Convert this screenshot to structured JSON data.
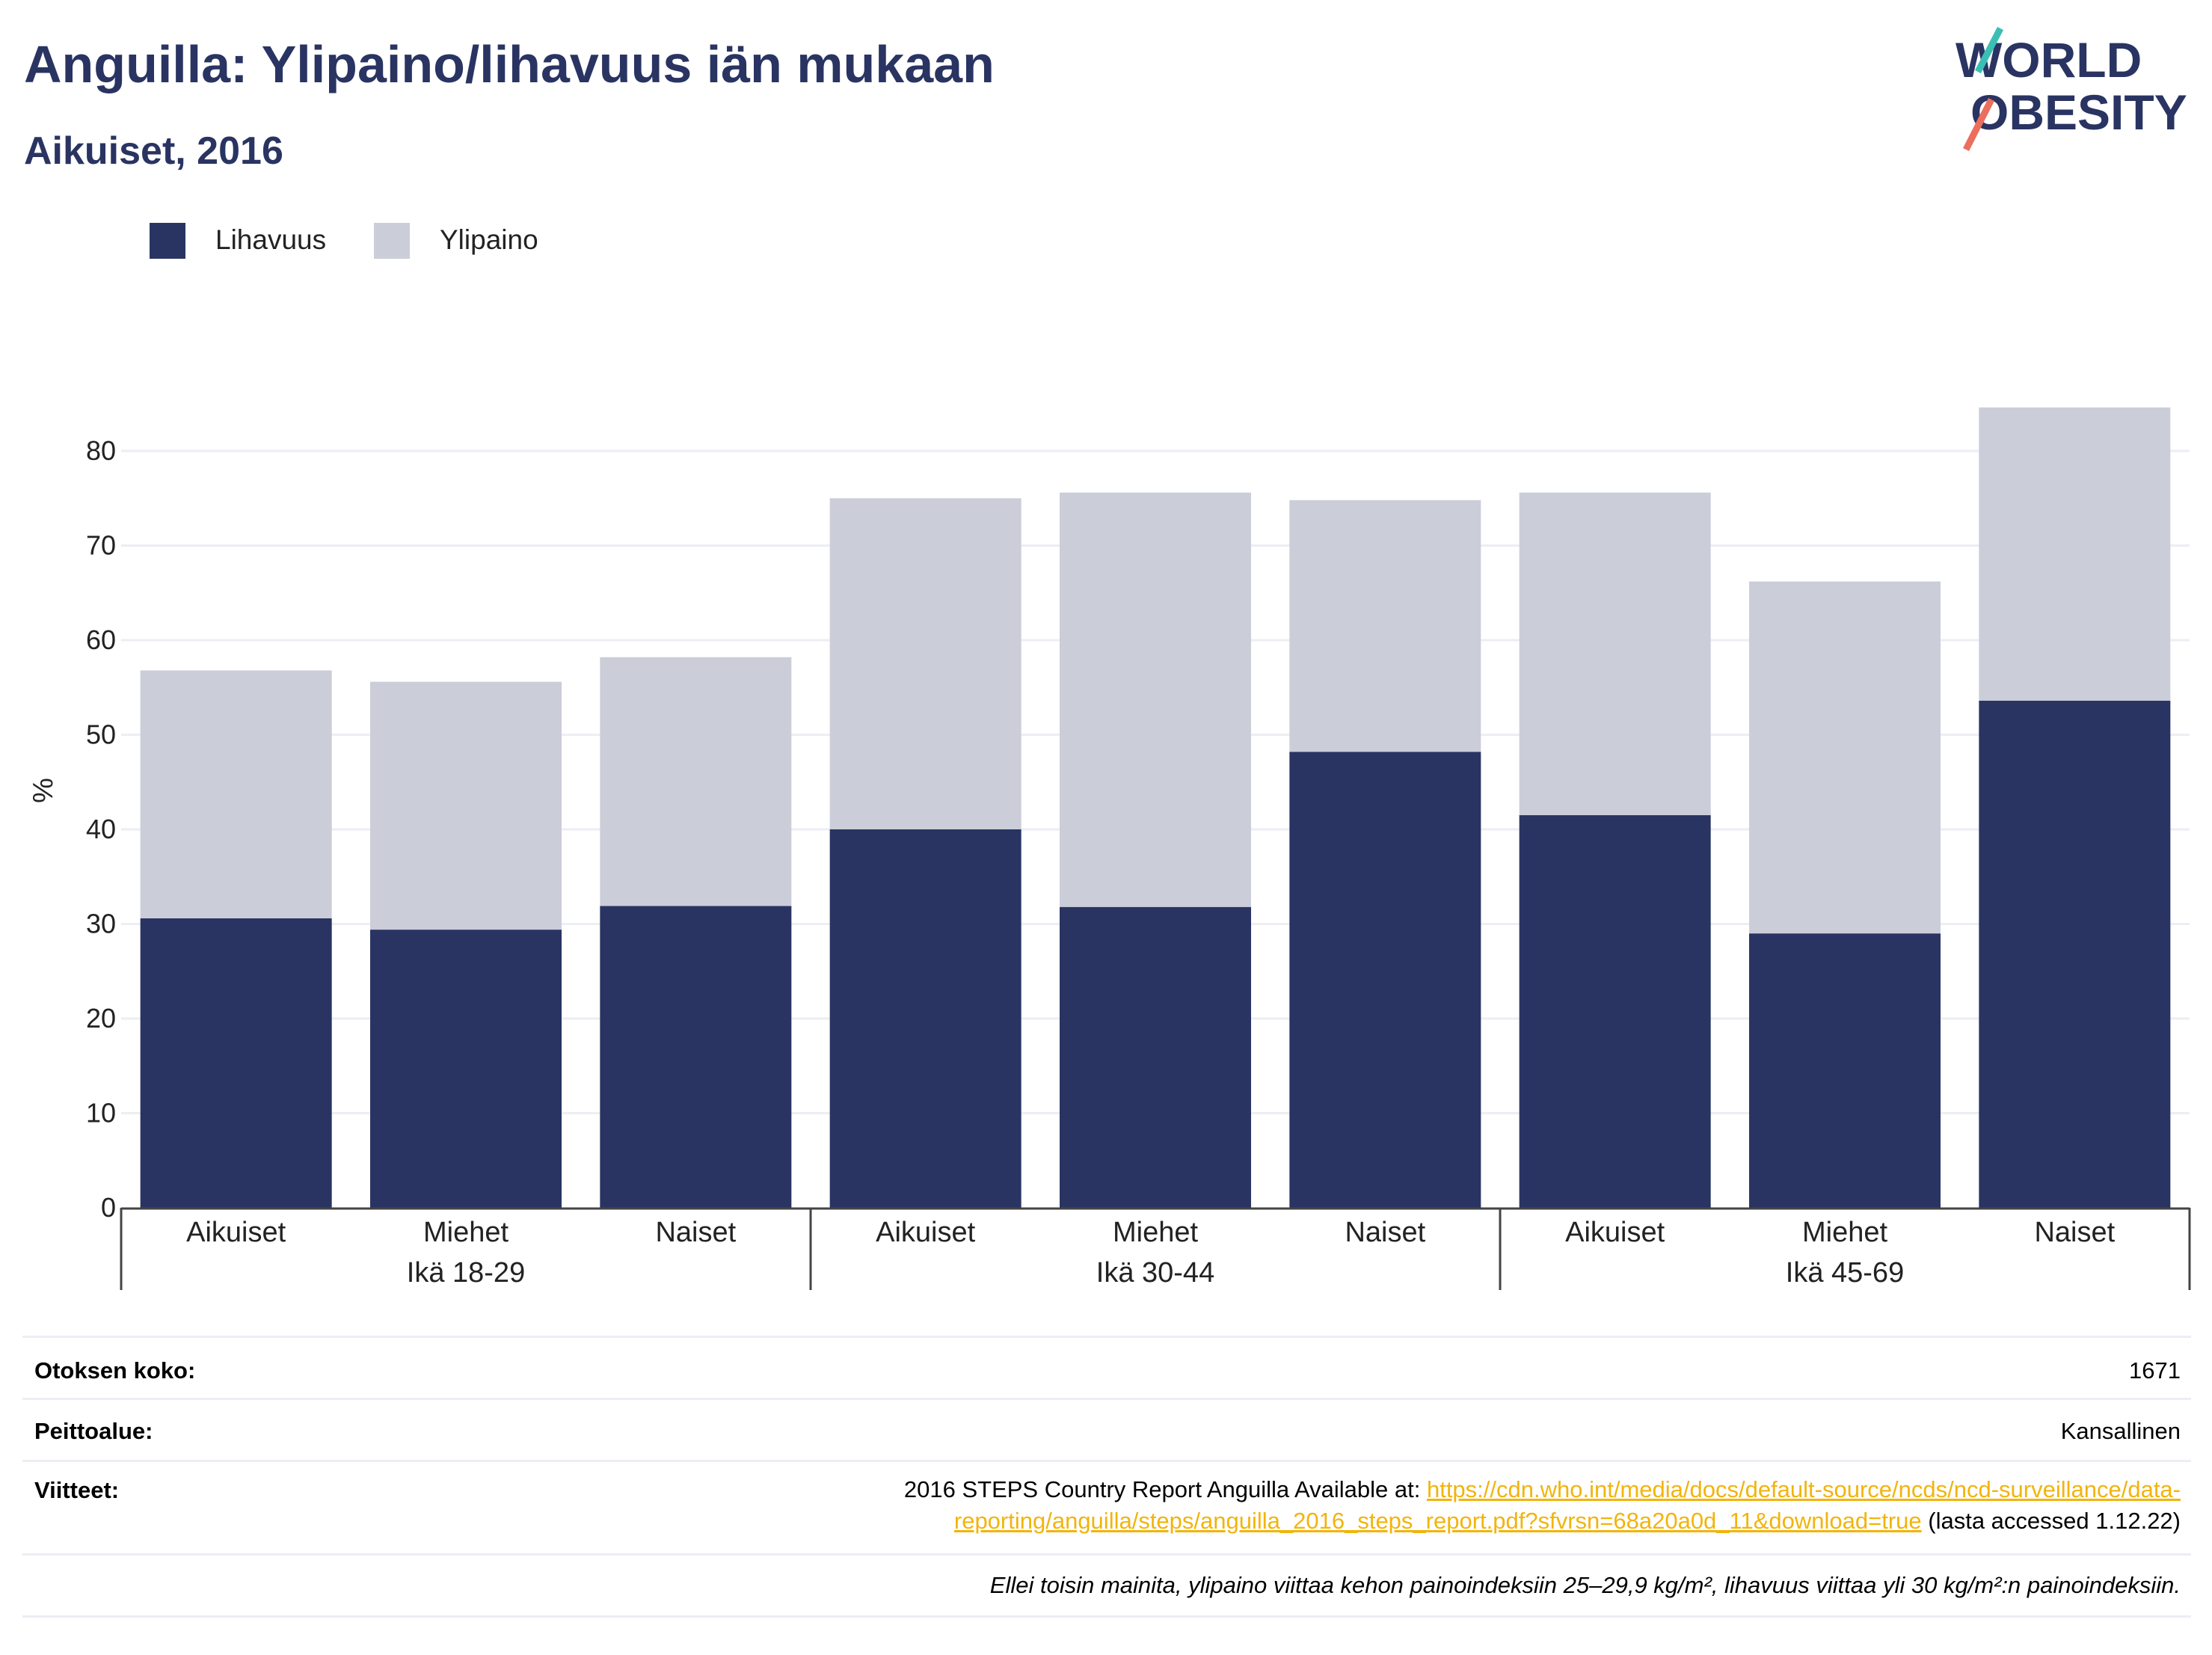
{
  "header": {
    "title": "Anguilla: Ylipaino/lihavuus iän mukaan",
    "subtitle": "Aikuiset, 2016"
  },
  "logo": {
    "line1": "WORLD",
    "line2": "OBESITY"
  },
  "legend": [
    {
      "label": "Lihavuus",
      "color": "#293462"
    },
    {
      "label": "Ylipaino",
      "color": "#cbcdd9"
    }
  ],
  "chart_data": {
    "type": "bar",
    "stacked": true,
    "ylabel": "%",
    "ylim": [
      0,
      85
    ],
    "yticks": [
      0,
      10,
      20,
      30,
      40,
      50,
      60,
      70,
      80
    ],
    "grid": true,
    "legend_position": "top-left",
    "categories": [
      "Aikuiset",
      "Miehet",
      "Naiset",
      "Aikuiset",
      "Miehet",
      "Naiset",
      "Aikuiset",
      "Miehet",
      "Naiset"
    ],
    "groups": [
      {
        "label": "Ikä 18-29",
        "start": 0,
        "end": 2
      },
      {
        "label": "Ikä 30-44",
        "start": 3,
        "end": 5
      },
      {
        "label": "Ikä 45-69",
        "start": 6,
        "end": 8
      }
    ],
    "series": [
      {
        "name": "Lihavuus",
        "color": "#293462",
        "values": [
          30.6,
          29.4,
          31.9,
          40.0,
          31.8,
          48.2,
          41.5,
          29.0,
          53.6
        ]
      },
      {
        "name": "Ylipaino",
        "color": "#cbcdd9",
        "values": [
          26.2,
          26.2,
          26.3,
          35.0,
          43.8,
          26.6,
          34.1,
          37.2,
          31.0
        ]
      }
    ]
  },
  "footer": {
    "sample_label": "Otoksen koko:",
    "sample_value": "1671",
    "coverage_label": "Peittoalue:",
    "coverage_value": "Kansallinen",
    "refs_label": "Viitteet:",
    "refs_prefix": "2016 STEPS Country Report Anguilla Available at: ",
    "refs_link_1": "https://cdn.who.int/media/docs/default-source/ncds/ncd-surveillance/data-",
    "refs_link_2": "reporting/anguilla/steps/anguilla_2016_steps_report.pdf?sfvrsn=68a20a0d_11&download=true",
    "refs_suffix": " (lasta accessed 1.12.22)",
    "note": "Ellei toisin mainita, ylipaino viittaa kehon painoindeksiin 25–29,9 kg/m², lihavuus viittaa yli 30 kg/m²:n painoindeksiin."
  }
}
